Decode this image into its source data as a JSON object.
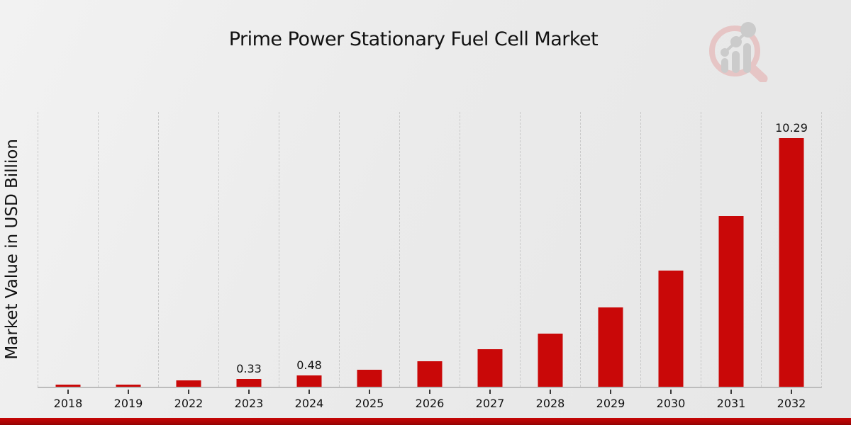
{
  "header": {
    "title": "Prime Power Stationary Fuel Cell Market"
  },
  "logo": {
    "name": "magnifier-bar-chart-watermark",
    "ring_color": "#e6c5c5",
    "glyph_color": "#cbcbcb"
  },
  "chart_data": {
    "type": "bar",
    "title": "Prime Power Stationary Fuel Cell Market",
    "xlabel": "",
    "ylabel": "Market Value in USD Billion",
    "categories": [
      "2018",
      "2019",
      "2022",
      "2023",
      "2024",
      "2025",
      "2026",
      "2027",
      "2028",
      "2029",
      "2030",
      "2031",
      "2032"
    ],
    "values": [
      0.08,
      0.08,
      0.25,
      0.33,
      0.48,
      0.7,
      1.05,
      1.55,
      2.2,
      3.28,
      4.8,
      7.05,
      10.29
    ],
    "bar_labels": [
      "",
      "",
      "",
      "0.33",
      "0.48",
      "",
      "",
      "",
      "",
      "",
      "",
      "",
      "10.29"
    ],
    "ylim": [
      0,
      11.37
    ],
    "bar_color": "#c90808",
    "grid": {
      "vertical": true,
      "horizontal": false,
      "style": "dashed",
      "color": "#c9c9c9"
    },
    "axis_line_color": "#bcbcbc",
    "tick_color": "#3a3a3a",
    "text_color": "#111111",
    "legend": "none"
  },
  "footer": {
    "stripe_colors": [
      "#c70606",
      "#8e0202"
    ]
  },
  "page": {
    "background": "#ebebeb"
  }
}
